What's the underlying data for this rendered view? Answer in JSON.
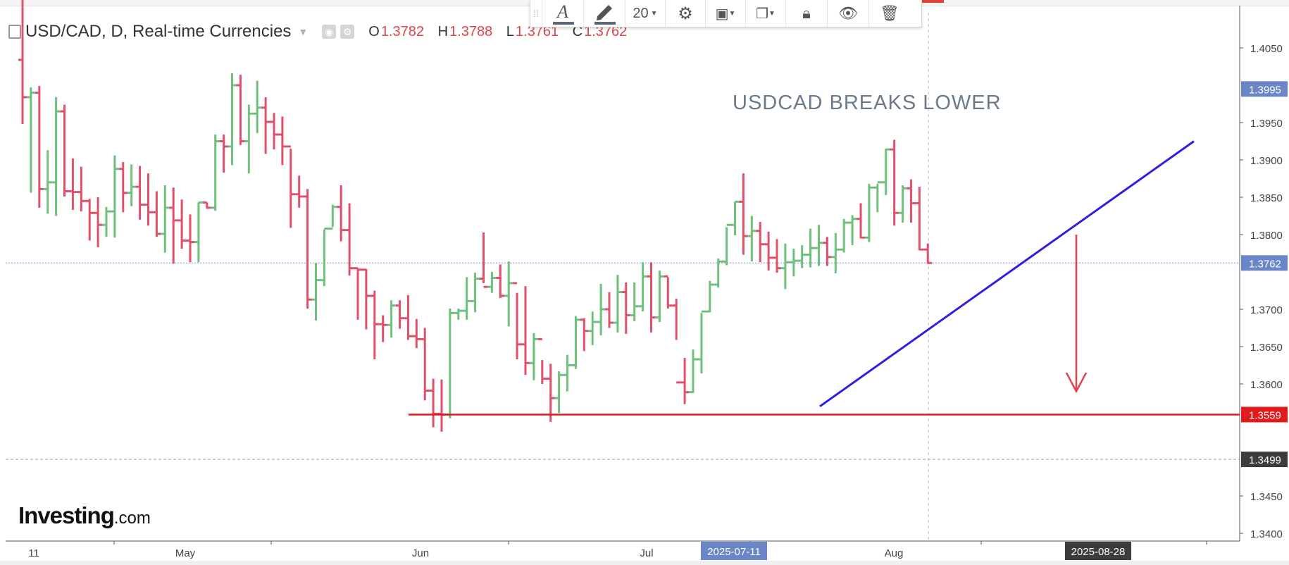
{
  "legend": {
    "symbol": "USD/CAD, D, Real-time Currencies",
    "open_label": "O",
    "open_value": "1.3782",
    "high_label": "H",
    "high_value": "1.3788",
    "low_label": "L",
    "low_value": "1.3761",
    "close_label": "C",
    "close_value": "1.3762"
  },
  "toolbar": {
    "font_size": "20"
  },
  "logo": {
    "main": "Investing",
    "suffix": ".com"
  },
  "colors": {
    "up": "#6fbf7d",
    "down": "#e0506a",
    "trendline": "#2d1fe0",
    "support": "#e01b1b",
    "axis_text": "#444444"
  },
  "chart_data": {
    "type": "ohlc",
    "title": "USDCAD BREAKS LOWER",
    "price_axis": {
      "ticks": [
        "1.4050",
        "1.3950",
        "1.3900",
        "1.3850",
        "1.3800",
        "1.3700",
        "1.3650",
        "1.3600",
        "1.3450",
        "1.3400"
      ],
      "badges": [
        {
          "value": "1.3995",
          "color": "#6a86c7"
        },
        {
          "value": "1.3762",
          "color": "#6a86c7"
        },
        {
          "value": "1.3559",
          "color": "#e01b1b"
        },
        {
          "value": "1.3499",
          "color": "#3c3c3c"
        }
      ]
    },
    "time_axis": {
      "labels": [
        "11",
        "May",
        "Jun",
        "Jul",
        "Aug"
      ],
      "crosshair_labels": [
        "2025-07-11",
        "2025-08-28"
      ]
    },
    "bars": [
      [
        1.4034,
        1.4115,
        1.3948,
        1.3984
      ],
      [
        1.3984,
        1.3997,
        1.3856,
        1.399
      ],
      [
        1.399,
        1.3999,
        1.3836,
        1.3861
      ],
      [
        1.3861,
        1.3913,
        1.3828,
        1.387
      ],
      [
        1.387,
        1.3984,
        1.3825,
        1.3965
      ],
      [
        1.3965,
        1.3974,
        1.3851,
        1.3858
      ],
      [
        1.3858,
        1.3902,
        1.3833,
        1.3857
      ],
      [
        1.3857,
        1.3891,
        1.3831,
        1.3845
      ],
      [
        1.3845,
        1.3848,
        1.3792,
        1.3829
      ],
      [
        1.3829,
        1.385,
        1.3783,
        1.3813
      ],
      [
        1.3813,
        1.3837,
        1.3797,
        1.3831
      ],
      [
        1.3831,
        1.3906,
        1.3796,
        1.3888
      ],
      [
        1.3888,
        1.3897,
        1.383,
        1.3856
      ],
      [
        1.3856,
        1.3894,
        1.3838,
        1.3864
      ],
      [
        1.3864,
        1.3892,
        1.382,
        1.384
      ],
      [
        1.384,
        1.3882,
        1.3812,
        1.383
      ],
      [
        1.383,
        1.3858,
        1.3797,
        1.3801
      ],
      [
        1.3801,
        1.3866,
        1.3776,
        1.3836
      ],
      [
        1.3836,
        1.3863,
        1.3761,
        1.3819
      ],
      [
        1.3819,
        1.3847,
        1.3781,
        1.3792
      ],
      [
        1.3792,
        1.3827,
        1.3763,
        1.379
      ],
      [
        1.379,
        1.3843,
        1.3763,
        1.3843
      ],
      [
        1.3843,
        1.3843,
        1.3835,
        1.3836
      ],
      [
        1.3836,
        1.3934,
        1.3832,
        1.3925
      ],
      [
        1.3925,
        1.3934,
        1.3883,
        1.3918
      ],
      [
        1.3918,
        1.4016,
        1.3893,
        1.4
      ],
      [
        1.4,
        1.4014,
        1.392,
        1.3925
      ],
      [
        1.3925,
        1.3974,
        1.3882,
        1.3962
      ],
      [
        1.3962,
        1.4006,
        1.3936,
        1.397
      ],
      [
        1.397,
        1.3984,
        1.3908,
        1.3951
      ],
      [
        1.3951,
        1.3963,
        1.3914,
        1.3934
      ],
      [
        1.3934,
        1.3958,
        1.3893,
        1.3918
      ],
      [
        1.3918,
        1.3915,
        1.3809,
        1.3854
      ],
      [
        1.3854,
        1.3879,
        1.3836,
        1.3851
      ],
      [
        1.3851,
        1.3861,
        1.3701,
        1.3713
      ],
      [
        1.3713,
        1.3762,
        1.3685,
        1.3739
      ],
      [
        1.3739,
        1.3807,
        1.3731,
        1.3808
      ],
      [
        1.3808,
        1.384,
        1.381,
        1.3837
      ],
      [
        1.3837,
        1.3866,
        1.3791,
        1.3806
      ],
      [
        1.3806,
        1.3842,
        1.3745,
        1.3755
      ],
      [
        1.3755,
        1.3755,
        1.3686,
        1.3753
      ],
      [
        1.3753,
        1.3754,
        1.3673,
        1.3718
      ],
      [
        1.3718,
        1.3725,
        1.3633,
        1.368
      ],
      [
        1.368,
        1.3692,
        1.3656,
        1.3679
      ],
      [
        1.3679,
        1.3712,
        1.3662,
        1.3705
      ],
      [
        1.3705,
        1.3712,
        1.3674,
        1.3688
      ],
      [
        1.3688,
        1.3719,
        1.3659,
        1.3664
      ],
      [
        1.3664,
        1.3687,
        1.3648,
        1.366
      ],
      [
        1.366,
        1.3675,
        1.3578,
        1.3591
      ],
      [
        1.3591,
        1.3607,
        1.3542,
        1.356
      ],
      [
        1.356,
        1.3606,
        1.3536,
        1.3559
      ],
      [
        1.3559,
        1.3701,
        1.3554,
        1.3695
      ],
      [
        1.3695,
        1.3701,
        1.3686,
        1.3698
      ],
      [
        1.3698,
        1.3743,
        1.3686,
        1.3711
      ],
      [
        1.3711,
        1.3749,
        1.3696,
        1.3741
      ],
      [
        1.3741,
        1.3803,
        1.3735,
        1.373
      ],
      [
        1.373,
        1.375,
        1.3722,
        1.3742
      ],
      [
        1.3742,
        1.376,
        1.3715,
        1.3718
      ],
      [
        1.3718,
        1.3764,
        1.3677,
        1.3735
      ],
      [
        1.3735,
        1.3722,
        1.3633,
        1.3653
      ],
      [
        1.3653,
        1.3731,
        1.3612,
        1.3628
      ],
      [
        1.3628,
        1.3668,
        1.3605,
        1.366
      ],
      [
        1.366,
        1.3632,
        1.36,
        1.3607
      ],
      [
        1.3607,
        1.3627,
        1.3549,
        1.3581
      ],
      [
        1.3581,
        1.3617,
        1.3561,
        1.3612
      ],
      [
        1.3612,
        1.3639,
        1.359,
        1.3625
      ],
      [
        1.3625,
        1.3691,
        1.362,
        1.3686
      ],
      [
        1.3686,
        1.3688,
        1.3644,
        1.3671
      ],
      [
        1.3671,
        1.3697,
        1.3652,
        1.3683
      ],
      [
        1.3683,
        1.3734,
        1.3665,
        1.37
      ],
      [
        1.37,
        1.3723,
        1.3675,
        1.3682
      ],
      [
        1.3682,
        1.3746,
        1.3669,
        1.3723
      ],
      [
        1.3723,
        1.3736,
        1.3667,
        1.3692
      ],
      [
        1.3692,
        1.3736,
        1.3684,
        1.3704
      ],
      [
        1.3704,
        1.3763,
        1.3697,
        1.3744
      ],
      [
        1.3744,
        1.3763,
        1.3669,
        1.3689
      ],
      [
        1.3689,
        1.3752,
        1.3683,
        1.3744
      ],
      [
        1.3744,
        1.3743,
        1.3701,
        1.3705
      ],
      [
        1.3705,
        1.3714,
        1.3659,
        1.3602
      ],
      [
        1.3602,
        1.3635,
        1.3573,
        1.3589
      ],
      [
        1.3589,
        1.3646,
        1.3588,
        1.3633
      ],
      [
        1.3633,
        1.3695,
        1.3614,
        1.3697
      ],
      [
        1.3697,
        1.3738,
        1.3696,
        1.3733
      ],
      [
        1.3733,
        1.3768,
        1.3729,
        1.3764
      ],
      [
        1.3764,
        1.381,
        1.3759,
        1.3813
      ],
      [
        1.3813,
        1.3844,
        1.3799,
        1.3844
      ],
      [
        1.3844,
        1.3882,
        1.3773,
        1.3798
      ],
      [
        1.3798,
        1.3825,
        1.3764,
        1.3805
      ],
      [
        1.3805,
        1.3817,
        1.3763,
        1.3787
      ],
      [
        1.3787,
        1.3804,
        1.3752,
        1.3769
      ],
      [
        1.3769,
        1.3794,
        1.3749,
        1.3755
      ],
      [
        1.3755,
        1.3788,
        1.3727,
        1.3763
      ],
      [
        1.3763,
        1.3781,
        1.3744,
        1.3765
      ],
      [
        1.3765,
        1.3786,
        1.3755,
        1.3773
      ],
      [
        1.3773,
        1.3808,
        1.3756,
        1.3782
      ],
      [
        1.3782,
        1.3813,
        1.3758,
        1.3789
      ],
      [
        1.3789,
        1.3797,
        1.3758,
        1.377
      ],
      [
        1.377,
        1.3802,
        1.3748,
        1.378
      ],
      [
        1.378,
        1.3821,
        1.3776,
        1.3816
      ],
      [
        1.3816,
        1.3826,
        1.3786,
        1.3821
      ],
      [
        1.3821,
        1.3842,
        1.3795,
        1.3796
      ],
      [
        1.3796,
        1.3868,
        1.379,
        1.3863
      ],
      [
        1.3863,
        1.3868,
        1.383,
        1.387
      ],
      [
        1.387,
        1.3915,
        1.3853,
        1.3914
      ],
      [
        1.3914,
        1.3927,
        1.3812,
        1.3829
      ],
      [
        1.3829,
        1.3866,
        1.3816,
        1.3862
      ],
      [
        1.3862,
        1.3874,
        1.3816,
        1.3842
      ],
      [
        1.3842,
        1.3864,
        1.3779,
        1.378
      ],
      [
        1.378,
        1.3788,
        1.3761,
        1.3762
      ]
    ],
    "annotations": {
      "support_level": 1.3559,
      "trendline": {
        "from": "2025-07-16",
        "to": "2025-09-10"
      },
      "down_arrow": "2025-08-28"
    }
  }
}
